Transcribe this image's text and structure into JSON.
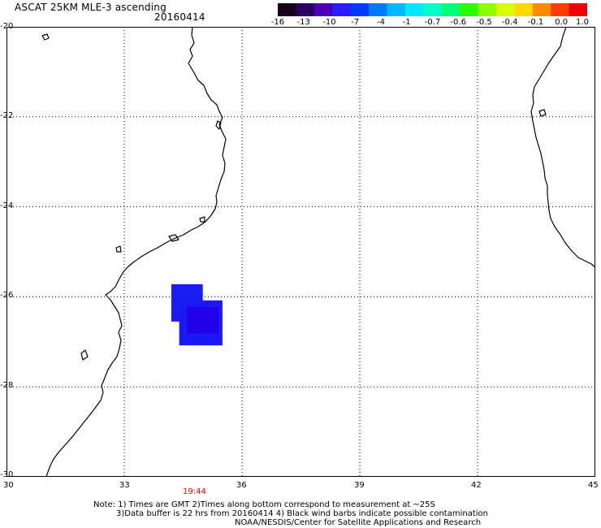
{
  "header": {
    "title": "ASCAT 25KM MLE-3 ascending",
    "date": "20160414"
  },
  "colorbar": {
    "colors": [
      "#180018",
      "#2a0060",
      "#4a00b8",
      "#2a1cff",
      "#003aff",
      "#0078ff",
      "#00b8ff",
      "#00e8ff",
      "#00ffc8",
      "#00ff78",
      "#28ff00",
      "#8cff00",
      "#d8ff00",
      "#ffd800",
      "#ff8c00",
      "#ff3c00",
      "#f00000"
    ],
    "labels": [
      "-16",
      "-13",
      "-10",
      "-7",
      "-4",
      "-1",
      "-0.7",
      "-0.6",
      "-0.5",
      "-0.4",
      "-0.1",
      "0.0",
      "1.0"
    ]
  },
  "map": {
    "lon_range": [
      30,
      45
    ],
    "lat_range": [
      -30,
      -20
    ],
    "x_ticks": [
      "30",
      "33",
      "36",
      "39",
      "42",
      "45"
    ],
    "y_ticks": [
      "-20",
      "-22",
      "-24",
      "-26",
      "-28",
      "-30"
    ],
    "cells": [
      {
        "lon_min": 34.2,
        "lon_max": 35.0,
        "lat_min": -26.55,
        "lat_max": -25.72,
        "color": "#1a1cf0"
      },
      {
        "lon_min": 34.4,
        "lon_max": 35.5,
        "lat_min": -27.08,
        "lat_max": -26.08,
        "color": "#1a18f5"
      },
      {
        "lon_min": 34.6,
        "lon_max": 35.4,
        "lat_min": -26.82,
        "lat_max": -26.22,
        "color": "#2400e8"
      }
    ]
  },
  "time_marker": {
    "label": "19:44",
    "lon": 34.7
  },
  "notes": {
    "line1": "Note: 1) Times are GMT 2)Times along bottom correspond to measurement at ~25S",
    "line2": "3)Data buffer is 22 hrs from 20160414 4) Black wind barbs indicate possible contamination",
    "line3": "NOAA/NESDIS/Center for Satellite Applications and Research"
  }
}
